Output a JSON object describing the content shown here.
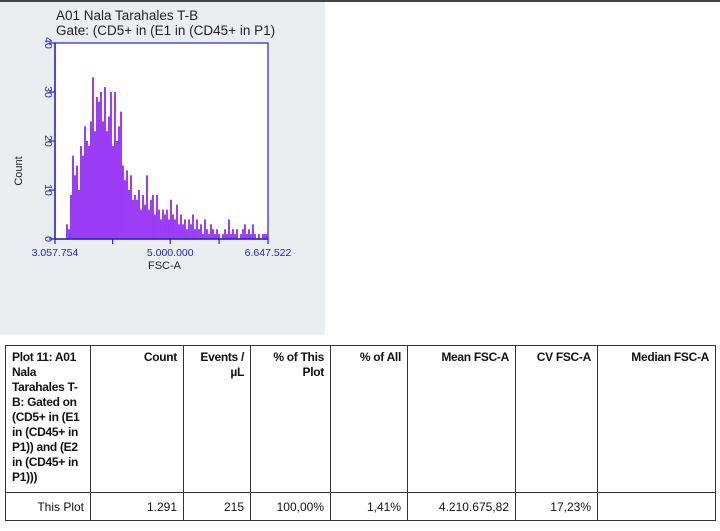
{
  "plot": {
    "title_line1": "A01 Nala Tarahales T-B",
    "title_line2": "Gate: (CD5+ in (E1 in (CD45+ in P1)"
  },
  "chart_data": {
    "type": "bar",
    "title": "A01 Nala Tarahales T-B",
    "subtitle": "Gate: (CD5+ in (E1 in (CD45+ in P1)",
    "xlabel": "FSC-A",
    "ylabel": "Count",
    "xlim": [
      3057754,
      6647522
    ],
    "ylim": [
      0,
      40
    ],
    "x_ticks": [
      {
        "value": 3057754,
        "label": "3.057.754"
      },
      {
        "value": 5000000,
        "label": "5.000.000"
      },
      {
        "value": 6647522,
        "label": "6.647.522"
      }
    ],
    "x_minor_ticks": [
      4029000,
      5824000
    ],
    "y_ticks": [
      {
        "value": 0,
        "label": "0"
      },
      {
        "value": 10,
        "label": "10"
      },
      {
        "value": 20,
        "label": "20"
      },
      {
        "value": 30,
        "label": "30"
      },
      {
        "value": 40,
        "label": "40"
      }
    ],
    "bin_start": 3243000,
    "bin_width": 33700,
    "values": [
      3,
      2,
      9,
      17,
      13,
      15,
      10,
      19,
      17,
      23,
      20,
      19,
      24,
      33,
      22,
      29,
      28,
      30,
      24,
      31,
      22,
      25,
      30,
      19,
      30,
      20,
      23,
      26,
      15,
      12,
      14,
      10,
      13,
      8,
      9,
      8,
      10,
      6,
      9,
      7,
      13,
      6,
      8,
      9,
      5,
      9,
      6,
      4,
      6,
      5,
      6,
      4,
      8,
      5,
      4,
      7,
      3,
      5,
      3,
      4,
      2,
      4,
      3,
      5,
      2,
      4,
      2,
      3,
      1,
      4,
      2,
      1,
      3,
      2,
      1,
      2,
      1,
      0,
      1,
      2,
      1,
      4,
      1,
      2,
      1,
      2,
      0,
      1,
      2,
      3,
      1,
      2,
      1,
      3,
      1,
      0,
      1,
      0,
      1,
      1,
      1
    ],
    "color": "#9b3cf5",
    "axis_color": "#2222cc",
    "grid": false
  },
  "table": {
    "headers": [
      "Plot 11: A01 Nala Tarahales T-B: Gated on (CD5+ in (E1 in (CD45+ in P1)) and (E2 in (CD45+ in P1)))",
      "Count",
      "Events / µL",
      "% of This Plot",
      "% of All",
      "Mean FSC-A",
      "CV FSC-A",
      "Median FSC-A"
    ],
    "rows": [
      [
        "This Plot",
        "1.291",
        "215",
        "100,00%",
        "1,41%",
        "4.210.675,82",
        "17,23%",
        ""
      ]
    ]
  }
}
